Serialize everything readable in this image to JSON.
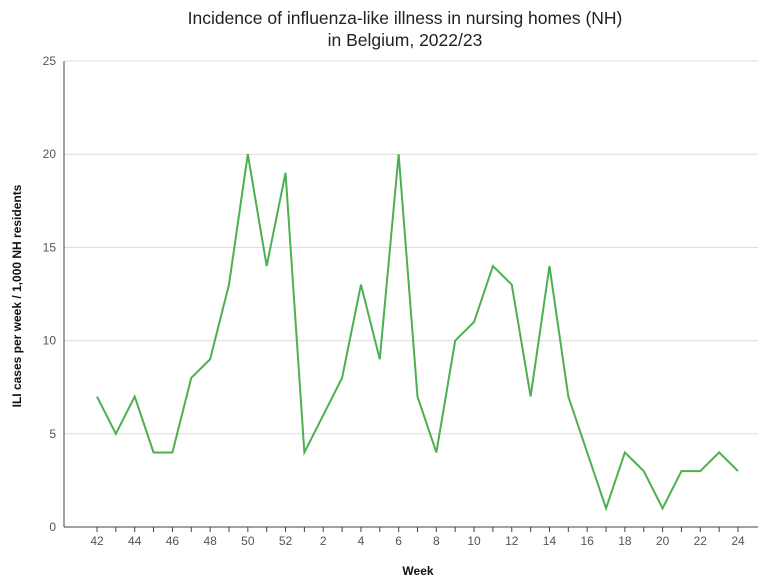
{
  "chart_data": {
    "type": "line",
    "title": "Incidence of influenza-like illness in nursing homes (NH)",
    "subtitle": "in Belgium, 2022/23",
    "xlabel": "Week",
    "ylabel": "ILI cases per week / 1,000 NH residents",
    "ylim": [
      0,
      25
    ],
    "y_ticks": [
      0,
      5,
      10,
      15,
      20,
      25
    ],
    "grid": "horizontal",
    "x": [
      "42",
      "43",
      "44",
      "45",
      "46",
      "47",
      "48",
      "49",
      "50",
      "51",
      "52",
      "1",
      "2",
      "3",
      "4",
      "5",
      "6",
      "7",
      "8",
      "9",
      "10",
      "11",
      "12",
      "13",
      "14",
      "15",
      "16",
      "17",
      "18",
      "19",
      "20",
      "21",
      "22",
      "23",
      "24"
    ],
    "x_tick_labels": [
      "42",
      "44",
      "46",
      "48",
      "50",
      "52",
      "2",
      "4",
      "6",
      "8",
      "10",
      "12",
      "14",
      "16",
      "18",
      "20",
      "22",
      "24"
    ],
    "series": [
      {
        "color": "#4caf50",
        "values": [
          7,
          5,
          7,
          4,
          4,
          8,
          9,
          13,
          20,
          14,
          19,
          4,
          6,
          8,
          13,
          9,
          20,
          7,
          4,
          10,
          11,
          14,
          13,
          7,
          14,
          7,
          4,
          1,
          4,
          3,
          1,
          3,
          3,
          4,
          3
        ]
      }
    ]
  }
}
